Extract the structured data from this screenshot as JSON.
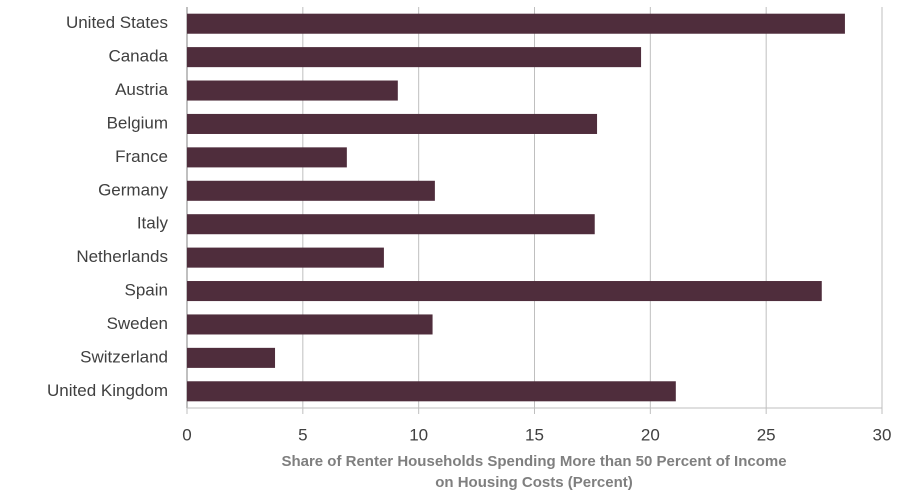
{
  "chart_data": {
    "type": "barh",
    "categories": [
      "United States",
      "Canada",
      "Austria",
      "Belgium",
      "France",
      "Germany",
      "Italy",
      "Netherlands",
      "Spain",
      "Sweden",
      "Switzerland",
      "United Kingdom"
    ],
    "values": [
      28.4,
      19.6,
      9.1,
      17.7,
      6.9,
      10.7,
      17.6,
      8.5,
      27.4,
      10.6,
      3.8,
      21.1
    ],
    "color": "#4f2d3c",
    "xlabel": [
      "Share of Renter Households Spending More than 50 Percent of Income",
      "on Housing Costs (Percent)"
    ],
    "xlim": [
      0,
      30
    ],
    "xticks": [
      0,
      5,
      10,
      15,
      20,
      25,
      30
    ],
    "grid": true
  }
}
